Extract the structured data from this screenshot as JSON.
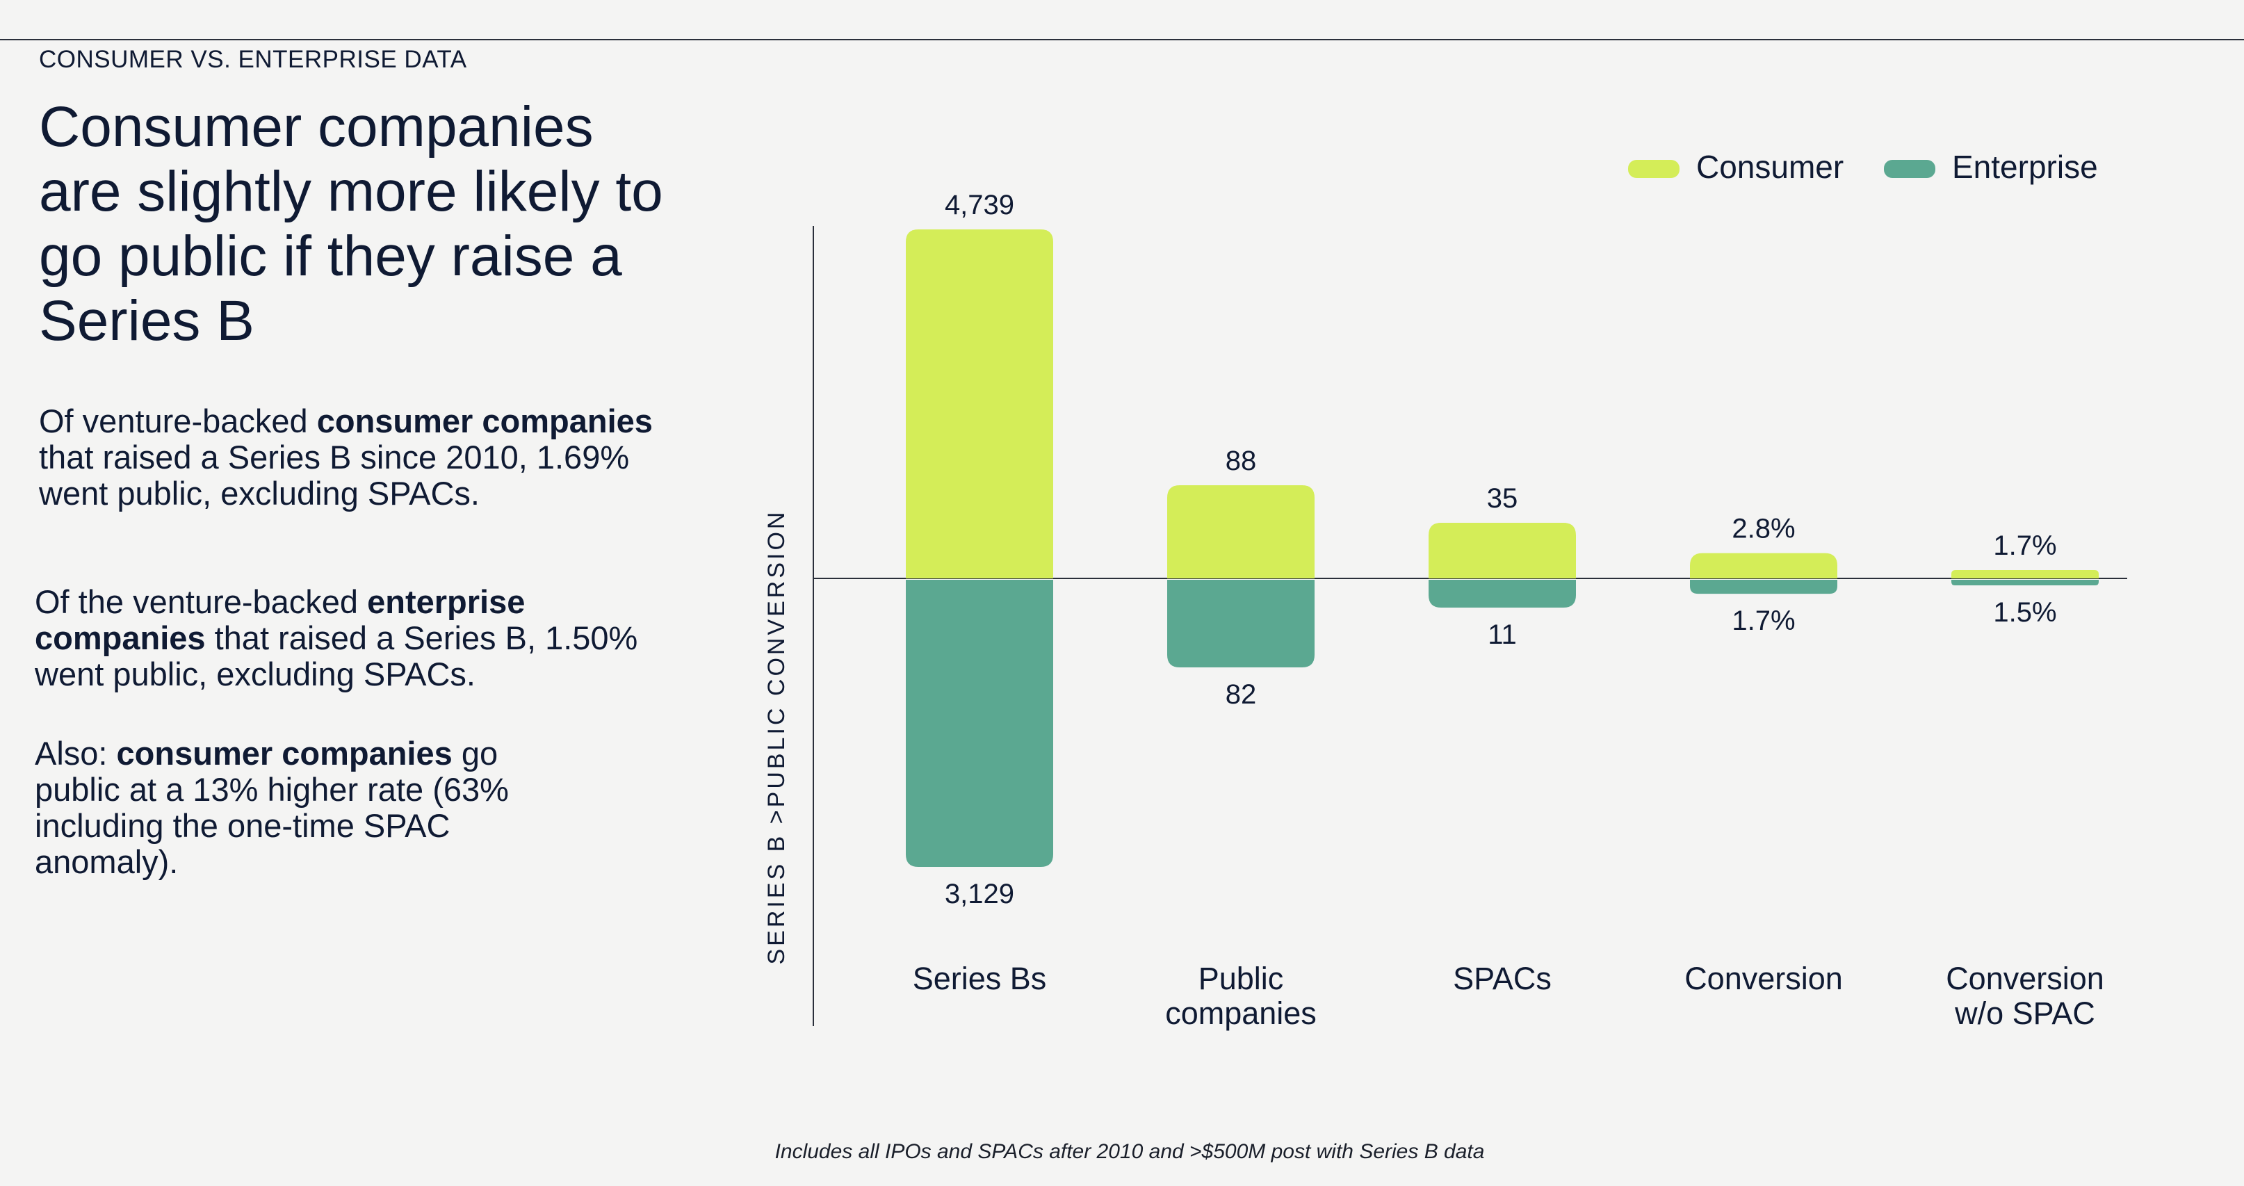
{
  "header": {
    "eyebrow": "CONSUMER VS. ENTERPRISE DATA",
    "headline": "Consumer companies are slightly more likely to go public if they raise a Series B"
  },
  "body": {
    "p1_bold_a": "consumer companies",
    "p1_pre": "Of venture-backed ",
    "p1_post": " that raised a Series B since 2010, 1.69% went public, excluding SPACs.",
    "p2_pre": "Of the venture-backed ",
    "p2_bold": "enterprise companies",
    "p2_post": " that raised a Series B, 1.50% went public, excluding SPACs.",
    "p3_pre": "Also: ",
    "p3_bold": "consumer companies",
    "p3_post": " go public at a 13% higher rate (63% including the one-time SPAC anomaly)."
  },
  "footnote": "Includes all IPOs and SPACs after 2010 and >$500M post with Series B data",
  "colors": {
    "consumer": "#d4ed58",
    "enterprise": "#5ba891",
    "axis": "#2a2f3a",
    "text": "#0f1a33"
  },
  "chart_data": {
    "type": "bar",
    "ylabel": "SERIES B >PUBLIC CONVERSION",
    "legend_position": "top-right",
    "categories": [
      "Series Bs",
      "Public companies",
      "SPACs",
      "Conversion",
      "Conversion w/o SPAC"
    ],
    "series": [
      {
        "name": "Consumer",
        "direction": "up",
        "labels": [
          "4,739",
          "88",
          "35",
          "2.8%",
          "1.7%"
        ],
        "values": [
          4739,
          88,
          35,
          2.8,
          1.7
        ]
      },
      {
        "name": "Enterprise",
        "direction": "down",
        "labels": [
          "3,129",
          "82",
          "11",
          "1.7%",
          "1.5%"
        ],
        "values": [
          3129,
          82,
          11,
          1.7,
          1.5
        ]
      }
    ]
  }
}
